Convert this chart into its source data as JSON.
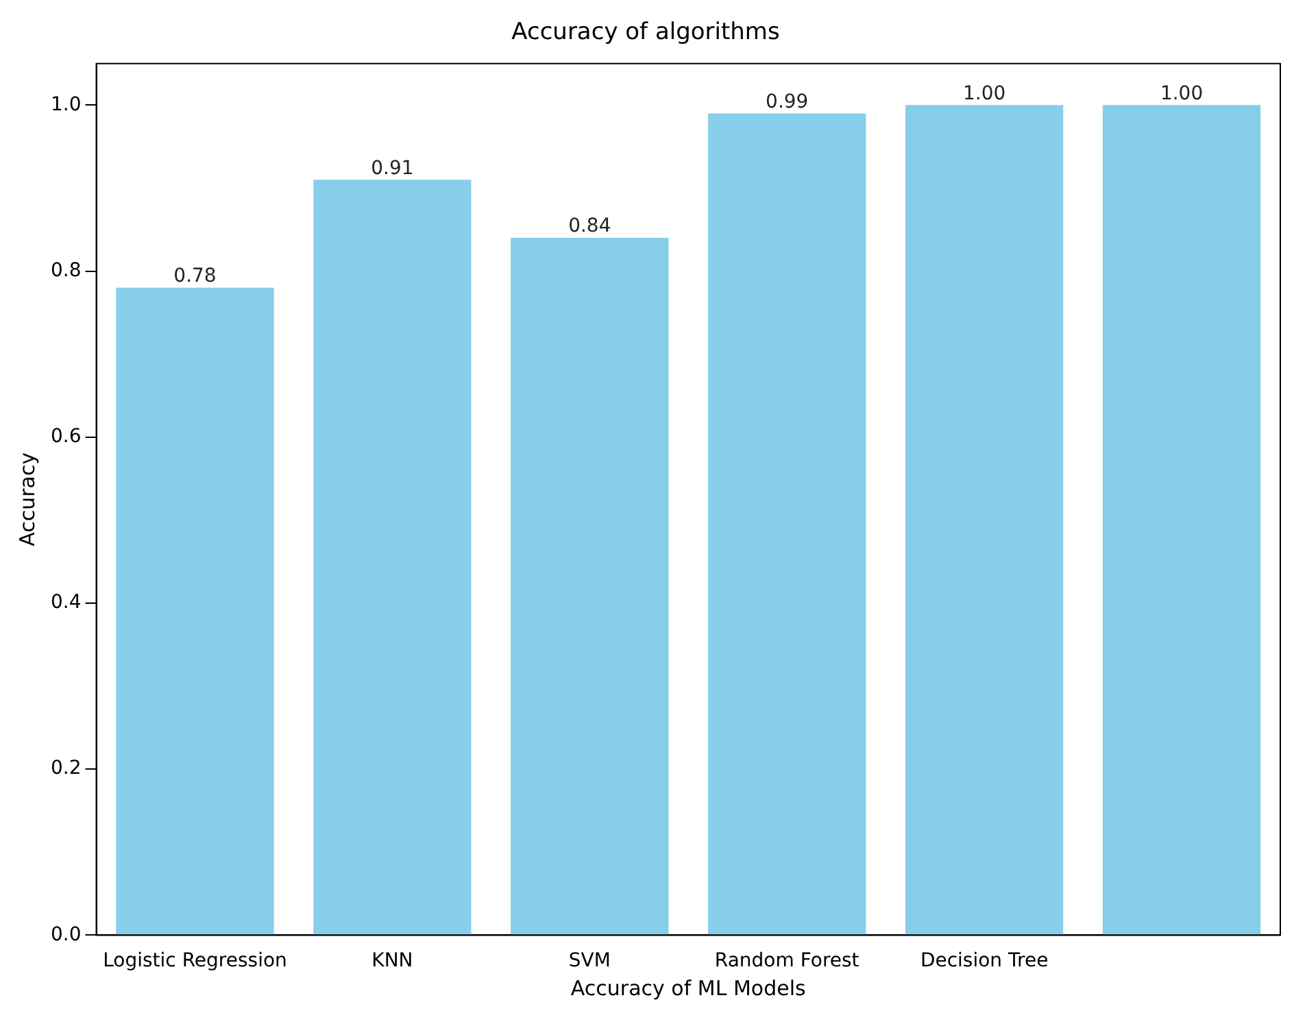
{
  "chart_data": {
    "type": "bar",
    "title": "Accuracy of algorithms",
    "xlabel": "Accuracy of ML Models",
    "ylabel": "Accuracy",
    "categories": [
      "Logistic Regression",
      "KNN",
      "SVM",
      "Random Forest",
      "Decision Tree",
      null
    ],
    "values": [
      0.78,
      0.91,
      0.84,
      0.99,
      1.0,
      1.0
    ],
    "value_labels": [
      "0.78",
      "0.91",
      "0.84",
      "0.99",
      "1.00",
      "1.00"
    ],
    "color": "#87ceeb",
    "ylim": [
      0,
      1.05
    ],
    "yticks": [
      {
        "value": 0,
        "label": "0.0"
      },
      {
        "value": 0.2,
        "label": "0.2"
      },
      {
        "value": 0.4,
        "label": "0.4"
      },
      {
        "value": 0.6,
        "label": "0.6"
      },
      {
        "value": 0.8,
        "label": "0.8"
      },
      {
        "value": 1,
        "label": "1.0"
      }
    ],
    "grid": false,
    "legend": false
  }
}
